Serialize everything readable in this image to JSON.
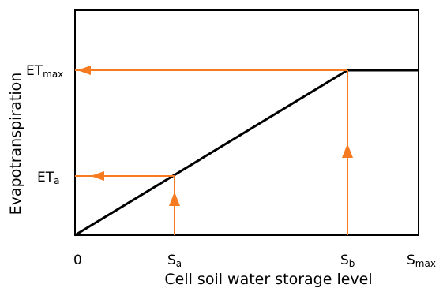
{
  "diagram": {
    "y_axis_title": "Evapotranspiration",
    "x_axis_title": "Cell soil water storage level",
    "x_ticks": [
      {
        "main": "0",
        "sub": ""
      },
      {
        "main": "S",
        "sub": "a"
      },
      {
        "main": "S",
        "sub": "b"
      },
      {
        "main": "S",
        "sub": "max"
      }
    ],
    "y_ticks": [
      {
        "main": "ET",
        "sub": "max"
      },
      {
        "main": "ET",
        "sub": "a"
      }
    ],
    "colors": {
      "curve": "#000000",
      "arrows": "#f57a20",
      "frame": "#000000"
    }
  }
}
